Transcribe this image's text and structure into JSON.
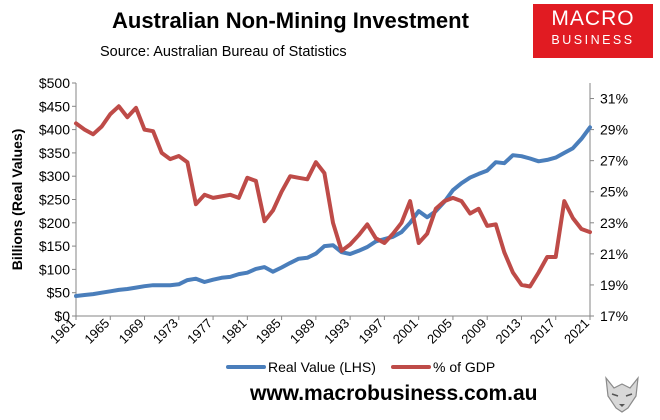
{
  "header": {
    "title": "Australian Non-Mining Investment",
    "subtitle": "Source: Australian Bureau of Statistics"
  },
  "logo": {
    "line1": "MACRO",
    "line2": "BUSINESS"
  },
  "footer": {
    "website": "www.macrobusiness.com.au"
  },
  "colors": {
    "real_value": "#4a7ebb",
    "pct_gdp": "#be4b48",
    "logo_bg": "#e11b22"
  },
  "chart_data": {
    "type": "line",
    "title": "Australian Non-Mining Investment",
    "xlabel": "",
    "ylabel": "Billions (Real Values)",
    "y2label": "",
    "x": [
      1961,
      1962,
      1963,
      1964,
      1965,
      1966,
      1967,
      1968,
      1969,
      1970,
      1971,
      1972,
      1973,
      1974,
      1975,
      1976,
      1977,
      1978,
      1979,
      1980,
      1981,
      1982,
      1983,
      1984,
      1985,
      1986,
      1987,
      1988,
      1989,
      1990,
      1991,
      1992,
      1993,
      1994,
      1995,
      1996,
      1997,
      1998,
      1999,
      2000,
      2001,
      2002,
      2003,
      2004,
      2005,
      2006,
      2007,
      2008,
      2009,
      2010,
      2011,
      2012,
      2013,
      2014,
      2015,
      2016,
      2017,
      2018,
      2019,
      2020,
      2021
    ],
    "xticks": [
      1961,
      1965,
      1969,
      1973,
      1977,
      1981,
      1985,
      1989,
      1993,
      1997,
      2001,
      2005,
      2009,
      2013,
      2017,
      2021
    ],
    "ylim": [
      0,
      500
    ],
    "yticks": [
      "$0",
      "$50",
      "$100",
      "$150",
      "$200",
      "$250",
      "$300",
      "$350",
      "$400",
      "$450",
      "$500"
    ],
    "y2lim": [
      17,
      32
    ],
    "y2ticks": [
      "17%",
      "19%",
      "21%",
      "23%",
      "25%",
      "27%",
      "29%",
      "31%"
    ],
    "legend_position": "bottom",
    "series": [
      {
        "name": "Real Value (LHS)",
        "axis": "left",
        "values": [
          43,
          45,
          47,
          50,
          53,
          56,
          58,
          61,
          64,
          66,
          66,
          66,
          68,
          77,
          80,
          73,
          78,
          82,
          84,
          90,
          93,
          101,
          105,
          95,
          104,
          114,
          123,
          125,
          134,
          150,
          152,
          137,
          133,
          140,
          148,
          160,
          165,
          170,
          180,
          200,
          225,
          212,
          225,
          245,
          270,
          285,
          297,
          305,
          312,
          330,
          328,
          345,
          343,
          338,
          332,
          335,
          340,
          350,
          360,
          380,
          405
        ]
      },
      {
        "name": "% of GDP",
        "axis": "right",
        "values": [
          29.4,
          29.0,
          28.7,
          29.2,
          30.0,
          30.5,
          29.8,
          30.4,
          29.0,
          28.9,
          27.5,
          27.1,
          27.3,
          26.9,
          24.2,
          24.8,
          24.6,
          24.7,
          24.8,
          24.6,
          25.9,
          25.7,
          23.1,
          23.8,
          25.0,
          26.0,
          25.9,
          25.8,
          26.9,
          26.2,
          23.0,
          21.2,
          21.6,
          22.2,
          22.9,
          22.0,
          21.7,
          22.3,
          23.0,
          24.4,
          21.7,
          22.3,
          23.9,
          24.4,
          24.6,
          24.4,
          23.6,
          23.9,
          22.8,
          22.9,
          21.1,
          19.8,
          19.0,
          18.9,
          19.8,
          20.8,
          20.8,
          24.4,
          23.3,
          22.6,
          22.4
        ]
      }
    ]
  }
}
